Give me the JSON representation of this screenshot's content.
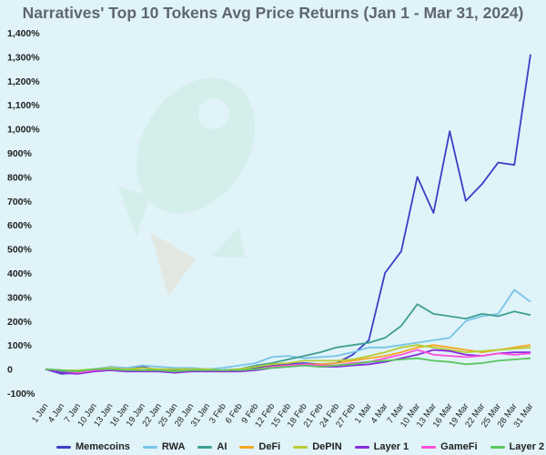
{
  "chart_data": {
    "type": "line",
    "title": "Narratives' Top 10 Tokens Avg Price Returns (Jan 1 - Mar 31, 2024)",
    "xlabel": "",
    "ylabel": "",
    "ylim": [
      -100,
      1400
    ],
    "yticks": [
      "-100%",
      "0",
      "100%",
      "200%",
      "300%",
      "400%",
      "500%",
      "600%",
      "700%",
      "800%",
      "900%",
      "1,000%",
      "1,100%",
      "1,200%",
      "1,300%",
      "1,400%"
    ],
    "x": [
      "1 Jan",
      "4 Jan",
      "7 Jan",
      "10 Jan",
      "13 Jan",
      "16 Jan",
      "19 Jan",
      "22 Jan",
      "25 Jan",
      "28 Jan",
      "31 Jan",
      "3 Feb",
      "6 Feb",
      "9 Feb",
      "12 Feb",
      "15 Feb",
      "18 Feb",
      "21 Feb",
      "24 Feb",
      "27 Feb",
      "1 Mar",
      "4 Mar",
      "7 Mar",
      "10 Mar",
      "13 Mar",
      "16 Mar",
      "19 Mar",
      "22 Mar",
      "25 Mar",
      "28 Mar",
      "31 Mar"
    ],
    "grid": false,
    "legend_position": "bottom",
    "series": [
      {
        "name": "Memecoins",
        "color": "#3b3fc4",
        "values": [
          0,
          -20,
          -15,
          -5,
          5,
          0,
          10,
          -5,
          0,
          0,
          -5,
          -5,
          0,
          5,
          15,
          20,
          25,
          20,
          25,
          60,
          120,
          400,
          490,
          800,
          650,
          990,
          700,
          770,
          860,
          850,
          1310
        ]
      },
      {
        "name": "RWA",
        "color": "#79c3e8",
        "values": [
          0,
          -5,
          -10,
          0,
          10,
          5,
          15,
          10,
          5,
          5,
          0,
          5,
          15,
          25,
          50,
          55,
          45,
          50,
          55,
          70,
          90,
          90,
          100,
          110,
          120,
          130,
          200,
          220,
          230,
          330,
          280
        ]
      },
      {
        "name": "AI",
        "color": "#3f9e92",
        "values": [
          0,
          -10,
          -15,
          0,
          -5,
          0,
          5,
          -5,
          -5,
          0,
          -5,
          -5,
          0,
          15,
          25,
          40,
          55,
          70,
          90,
          100,
          110,
          130,
          180,
          270,
          230,
          220,
          210,
          230,
          220,
          240,
          225
        ]
      },
      {
        "name": "DeFi",
        "color": "#f5a623",
        "values": [
          0,
          -5,
          -10,
          -5,
          -5,
          0,
          -5,
          -5,
          -10,
          -5,
          -5,
          -5,
          -5,
          0,
          10,
          15,
          20,
          20,
          25,
          35,
          45,
          55,
          70,
          90,
          100,
          90,
          80,
          70,
          80,
          90,
          100
        ]
      },
      {
        "name": "DePIN",
        "color": "#b8cc33",
        "values": [
          0,
          -5,
          -5,
          0,
          5,
          0,
          5,
          0,
          0,
          0,
          0,
          -5,
          0,
          10,
          20,
          25,
          35,
          35,
          35,
          40,
          55,
          70,
          90,
          100,
          90,
          80,
          70,
          75,
          80,
          85,
          90
        ]
      },
      {
        "name": "Layer 1",
        "color": "#8a2be2",
        "values": [
          0,
          -15,
          -20,
          -10,
          -5,
          -10,
          -10,
          -10,
          -15,
          -10,
          -10,
          -10,
          -10,
          -5,
          5,
          10,
          15,
          10,
          10,
          15,
          20,
          30,
          45,
          60,
          80,
          75,
          60,
          55,
          65,
          70,
          70
        ]
      },
      {
        "name": "GameFi",
        "color": "#ff4fd8",
        "values": [
          0,
          -5,
          -15,
          -5,
          0,
          -5,
          -5,
          -5,
          -10,
          -5,
          -5,
          -5,
          -5,
          0,
          10,
          15,
          20,
          15,
          15,
          25,
          30,
          45,
          60,
          80,
          60,
          55,
          50,
          55,
          65,
          60,
          65
        ]
      },
      {
        "name": "Layer 2",
        "color": "#59c75c",
        "values": [
          0,
          -5,
          -10,
          0,
          0,
          -5,
          -5,
          -5,
          -10,
          -5,
          -5,
          -5,
          -5,
          0,
          5,
          10,
          15,
          10,
          15,
          20,
          30,
          35,
          40,
          45,
          35,
          30,
          20,
          25,
          35,
          40,
          45
        ]
      }
    ]
  }
}
